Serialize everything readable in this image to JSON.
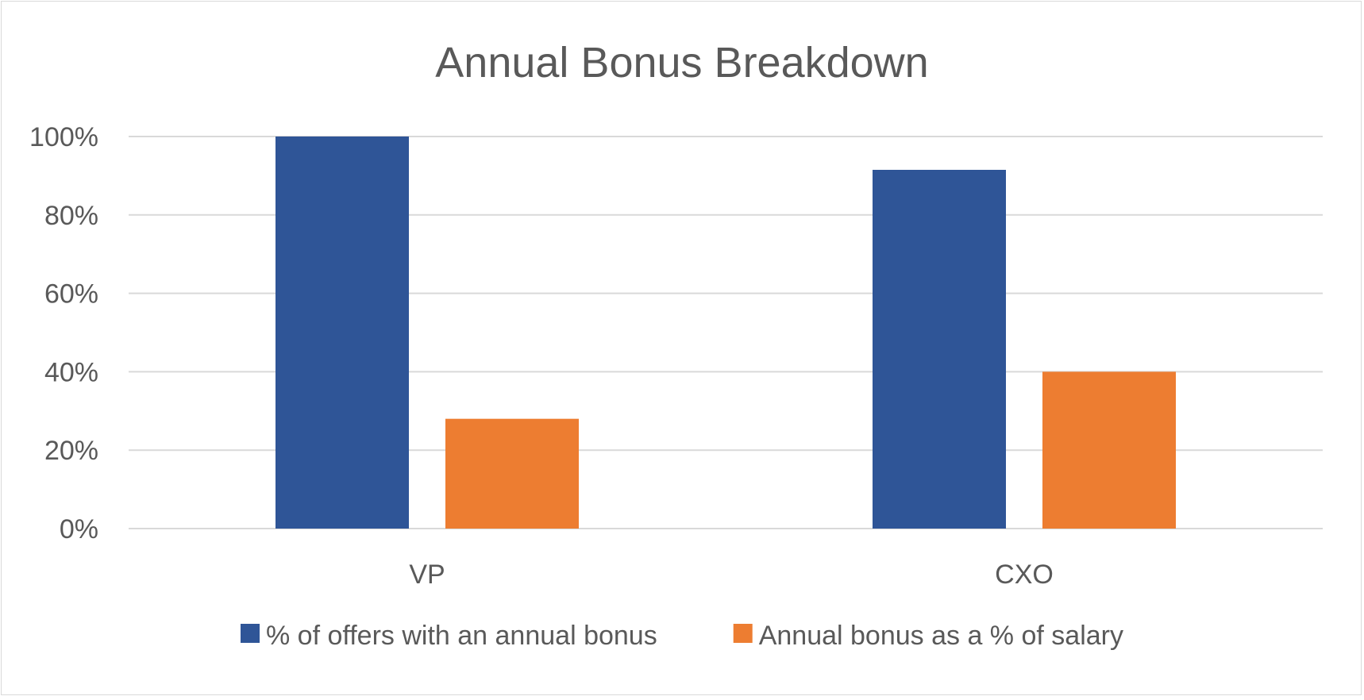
{
  "chart_data": {
    "type": "bar",
    "title": "Annual Bonus Breakdown",
    "xlabel": "",
    "ylabel": "",
    "categories": [
      "VP",
      "CXO"
    ],
    "series": [
      {
        "name": "% of offers with an annual bonus",
        "color": "#2F5597",
        "values": [
          100,
          91.5
        ]
      },
      {
        "name": "Annual bonus as a % of salary",
        "color": "#ED7D31",
        "values": [
          28,
          40
        ]
      }
    ],
    "ylim": [
      0,
      100
    ],
    "yticks": [
      0,
      20,
      40,
      60,
      80,
      100
    ],
    "ytick_labels": [
      "0%",
      "20%",
      "40%",
      "60%",
      "80%",
      "100%"
    ],
    "grid": true,
    "legend_position": "bottom"
  }
}
